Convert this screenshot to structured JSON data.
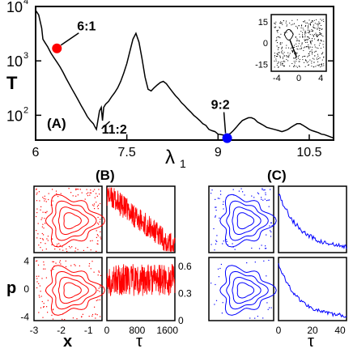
{
  "panel_labels": {
    "A": "(A)",
    "B": "(B)",
    "C": "(C)"
  },
  "colors": {
    "red": "#ff0000",
    "blue": "#0000ff",
    "line": "#000000"
  },
  "chart_data": [
    {
      "id": "A",
      "type": "line",
      "xlabel": "λ",
      "xlabel_sub": "1",
      "ylabel": "T",
      "xlim": [
        6,
        10.9
      ],
      "ylim": [
        35,
        10000
      ],
      "yscale": "log",
      "xticks": [
        6,
        7.5,
        9,
        10.5
      ],
      "xtick_labels": [
        "6",
        "7.5",
        "9",
        "10.5"
      ],
      "yticks": [
        100,
        1000,
        10000
      ],
      "ytick_labels": [
        "10",
        "10",
        "10"
      ],
      "ytick_exps": [
        "2",
        "3",
        "4"
      ],
      "series": [
        {
          "x": [
            6.0,
            6.05,
            6.1,
            6.12,
            6.15,
            6.2,
            6.25,
            6.3,
            6.35,
            6.4,
            6.45,
            6.5,
            6.55,
            6.6,
            6.65,
            6.7,
            6.75,
            6.8,
            6.85,
            6.9,
            6.95,
            6.98,
            7.0,
            7.05,
            7.08,
            7.1,
            7.12,
            7.15,
            7.2,
            7.25,
            7.3,
            7.35,
            7.4,
            7.45,
            7.5,
            7.55,
            7.6,
            7.65,
            7.7,
            7.75,
            7.8,
            7.85,
            7.9,
            7.95,
            8.0,
            8.05,
            8.1,
            8.15,
            8.2,
            8.25,
            8.3,
            8.35,
            8.4,
            8.45,
            8.5,
            8.55,
            8.6,
            8.65,
            8.7,
            8.75,
            8.8,
            8.85,
            8.9,
            8.95,
            9.0,
            9.05,
            9.1,
            9.15,
            9.2,
            9.25,
            9.3,
            9.35,
            9.4,
            9.45,
            9.5,
            9.55,
            9.6,
            9.65,
            9.7,
            9.75,
            9.8,
            9.85,
            9.9,
            9.95,
            10.0,
            10.05,
            10.1,
            10.15,
            10.2,
            10.25,
            10.3,
            10.35,
            10.4,
            10.45,
            10.5,
            10.55,
            10.6,
            10.65,
            10.7,
            10.75,
            10.8,
            10.85,
            10.9
          ],
          "y": [
            8500,
            7000,
            4000,
            2500,
            2200,
            1800,
            1400,
            1150,
            950,
            780,
            620,
            480,
            380,
            300,
            240,
            190,
            150,
            120,
            95,
            80,
            70,
            60,
            55,
            120,
            140,
            80,
            140,
            160,
            180,
            220,
            260,
            320,
            420,
            600,
            900,
            1500,
            2500,
            3200,
            2200,
            1100,
            500,
            300,
            280,
            320,
            360,
            400,
            420,
            380,
            320,
            270,
            230,
            200,
            170,
            150,
            130,
            115,
            100,
            90,
            80,
            70,
            65,
            55,
            52,
            50,
            45,
            44,
            43,
            44,
            46,
            52,
            60,
            70,
            80,
            85,
            90,
            90,
            85,
            75,
            70,
            65,
            60,
            58,
            56,
            54,
            52,
            50,
            52,
            55,
            60,
            65,
            70,
            70,
            65,
            60,
            55,
            52,
            50,
            48,
            45,
            44,
            42,
            40,
            38
          ]
        }
      ],
      "markers": [
        {
          "label": "6:1",
          "x": 6.35,
          "y": 1700,
          "color": "red"
        },
        {
          "label": "9:2",
          "x": 9.15,
          "y": 38,
          "color": "blue"
        }
      ],
      "annotations": [
        {
          "label": "11:2",
          "x": 7.02,
          "y": 80
        }
      ]
    },
    {
      "id": "A-inset",
      "type": "scatter",
      "xlim": [
        -5,
        5
      ],
      "ylim": [
        -20,
        20
      ],
      "xticks": [
        -4,
        0,
        4
      ],
      "xtick_labels": [
        "-4",
        "0",
        "4"
      ],
      "yticks": [
        15,
        0,
        -15
      ],
      "ytick_labels": [
        "15",
        "0",
        "-15"
      ],
      "color": "black"
    },
    {
      "id": "B-phase",
      "type": "scatter",
      "xlabel": "x",
      "ylabel": "p",
      "xlim": [
        -3,
        -0.5
      ],
      "ylim": [
        -4.5,
        4.5
      ],
      "xticks": [
        -3,
        -2,
        -1
      ],
      "xtick_labels": [
        "-3",
        "-2",
        "-1"
      ],
      "yticks": [
        4,
        0,
        -4
      ],
      "ytick_labels": [
        "4",
        "0",
        "-4"
      ],
      "color": "red"
    },
    {
      "id": "B-time",
      "type": "line",
      "xlabel": "τ",
      "xlim": [
        0,
        1800
      ],
      "ylim": [
        0,
        0.7
      ],
      "xticks": [
        0,
        800,
        1600
      ],
      "xtick_labels": [
        "0",
        "800",
        "1600"
      ],
      "yticks": [
        0,
        0.3,
        0.6
      ],
      "ytick_labels": [
        "0",
        "0.3",
        "0.6"
      ],
      "color": "red",
      "series_top": {
        "start": 0.62,
        "end": 0.05
      },
      "series_bottom": {
        "mean": 0.45,
        "amp": 0.18
      }
    },
    {
      "id": "C-phase",
      "type": "scatter",
      "color": "blue"
    },
    {
      "id": "C-time",
      "type": "line",
      "xlabel": "τ",
      "xlim": [
        0,
        40
      ],
      "xticks": [
        0,
        20,
        40
      ],
      "xtick_labels": [
        "0",
        "20",
        "40"
      ],
      "color": "blue"
    }
  ]
}
